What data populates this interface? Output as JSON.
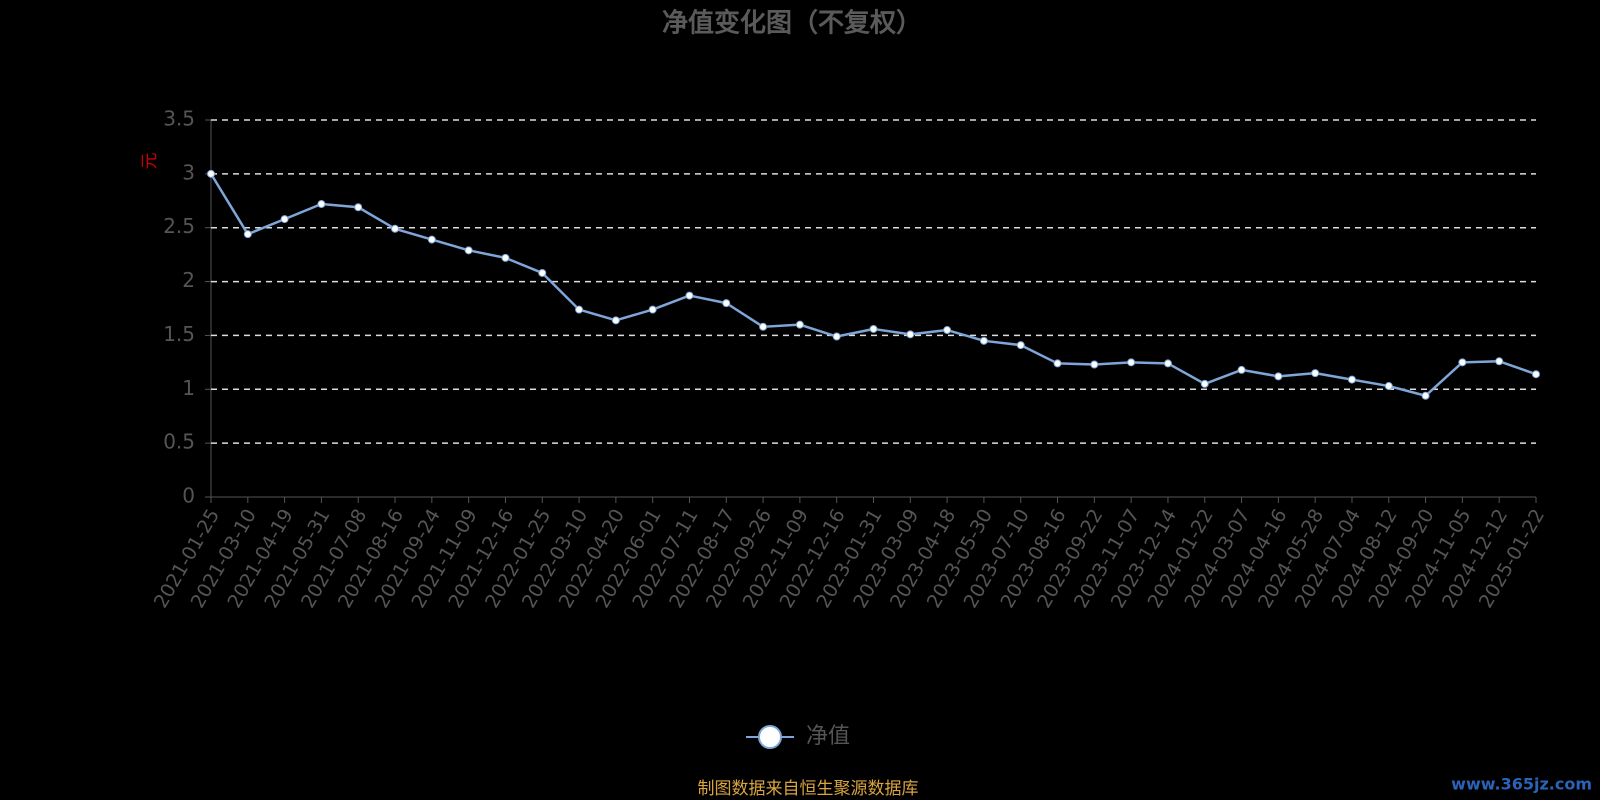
{
  "chart_data": {
    "type": "line",
    "title": "净值变化图（不复权）",
    "ylabel": "元",
    "categories": [
      "2021-01-25",
      "2021-03-10",
      "2021-04-19",
      "2021-05-31",
      "2021-07-08",
      "2021-08-16",
      "2021-09-24",
      "2021-11-09",
      "2021-12-16",
      "2022-01-25",
      "2022-03-10",
      "2022-04-20",
      "2022-06-01",
      "2022-07-11",
      "2022-08-17",
      "2022-09-26",
      "2022-11-09",
      "2022-12-16",
      "2023-01-31",
      "2023-03-09",
      "2023-04-18",
      "2023-05-30",
      "2023-07-10",
      "2023-08-16",
      "2023-09-22",
      "2023-11-07",
      "2023-12-14",
      "2024-01-22",
      "2024-03-07",
      "2024-04-16",
      "2024-05-28",
      "2024-07-04",
      "2024-08-12",
      "2024-09-20",
      "2024-11-05",
      "2024-12-12",
      "2025-01-22"
    ],
    "series": [
      {
        "name": "净值",
        "color": "#7ea6d8",
        "values": [
          3.0,
          2.44,
          2.58,
          2.72,
          2.69,
          2.49,
          2.39,
          2.29,
          2.22,
          2.08,
          1.74,
          1.64,
          1.74,
          1.87,
          1.8,
          1.58,
          1.6,
          1.49,
          1.56,
          1.51,
          1.55,
          1.45,
          1.41,
          1.24,
          1.23,
          1.25,
          1.24,
          1.05,
          1.18,
          1.12,
          1.15,
          1.09,
          1.03,
          0.94,
          1.25,
          1.26,
          1.14
        ]
      }
    ],
    "ylim": [
      0,
      3.5
    ],
    "yticks": [
      0,
      0.5,
      1,
      1.5,
      2,
      2.5,
      3,
      3.5
    ],
    "grid": true,
    "footer": "制图数据来自恒生聚源数据库",
    "watermark": "www.365jz.com"
  }
}
